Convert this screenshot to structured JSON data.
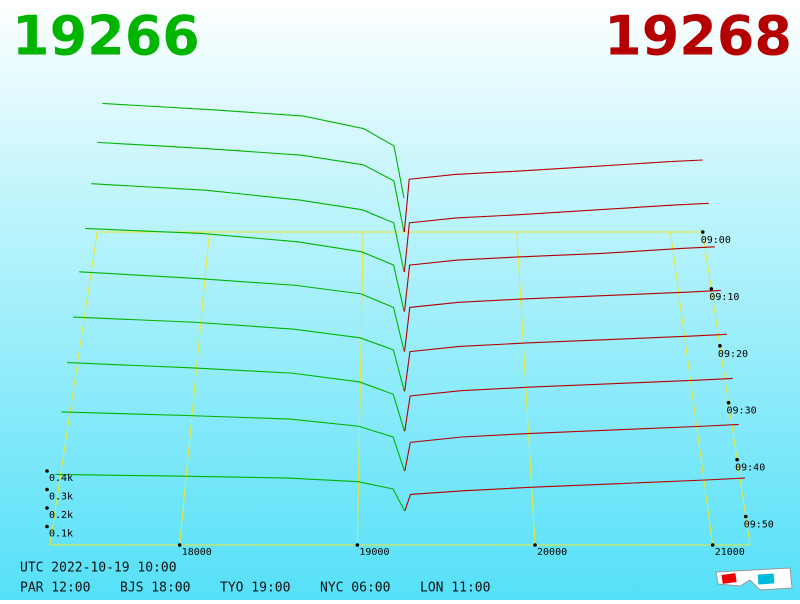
{
  "chart_data": {
    "type": "depth3d",
    "best_bid": 19266,
    "best_ask": 19268,
    "bid_color": "#00b400",
    "ask_color": "#b40000",
    "grid_color": "#e8e830",
    "xlim": [
      17270,
      21210
    ],
    "xticks": [
      18000,
      19000,
      20000,
      21000
    ],
    "depth_ticks": [
      {
        "value": 100,
        "label": "0.1k"
      },
      {
        "value": 200,
        "label": "0.2k"
      },
      {
        "value": 300,
        "label": "0.3k"
      },
      {
        "value": 400,
        "label": "0.4k"
      }
    ],
    "tlim": [
      540,
      595
    ],
    "time_ticks": [
      {
        "value": 540,
        "label": "09:00"
      },
      {
        "value": 550,
        "label": "09:10"
      },
      {
        "value": 560,
        "label": "09:20"
      },
      {
        "value": 570,
        "label": "09:30"
      },
      {
        "value": 580,
        "label": "09:40"
      },
      {
        "value": 590,
        "label": "09:50"
      }
    ],
    "bids": {
      "prices": [
        17270,
        18000,
        18600,
        19000,
        19200,
        19266
      ],
      "snapshots": [
        {
          "time": 534,
          "values": [
            600,
            560,
            520,
            440,
            330,
            0
          ]
        },
        {
          "time": 540,
          "values": [
            560,
            520,
            480,
            420,
            320,
            0
          ]
        },
        {
          "time": 547,
          "values": [
            540,
            500,
            440,
            380,
            300,
            0
          ]
        },
        {
          "time": 554,
          "values": [
            500,
            470,
            420,
            360,
            280,
            0
          ]
        },
        {
          "time": 561,
          "values": [
            470,
            430,
            390,
            340,
            260,
            0
          ]
        },
        {
          "time": 568,
          "values": [
            430,
            400,
            360,
            310,
            240,
            0
          ]
        },
        {
          "time": 575,
          "values": [
            390,
            360,
            330,
            280,
            210,
            0
          ]
        },
        {
          "time": 582,
          "values": [
            330,
            310,
            290,
            250,
            190,
            0
          ]
        },
        {
          "time": 589,
          "values": [
            200,
            190,
            180,
            160,
            120,
            0
          ]
        }
      ]
    },
    "asks": {
      "prices": [
        19268,
        19300,
        19600,
        20000,
        20500,
        21000,
        21210
      ],
      "snapshots": [
        {
          "time": 540,
          "values": [
            0,
            330,
            360,
            380,
            410,
            440,
            450
          ]
        },
        {
          "time": 547,
          "values": [
            0,
            300,
            330,
            350,
            380,
            410,
            420
          ]
        },
        {
          "time": 554,
          "values": [
            0,
            280,
            310,
            330,
            350,
            380,
            390
          ]
        },
        {
          "time": 561,
          "values": [
            0,
            260,
            290,
            310,
            330,
            350,
            360
          ]
        },
        {
          "time": 568,
          "values": [
            0,
            230,
            260,
            280,
            300,
            320,
            330
          ]
        },
        {
          "time": 575,
          "values": [
            0,
            200,
            230,
            250,
            270,
            290,
            300
          ]
        },
        {
          "time": 582,
          "values": [
            0,
            160,
            190,
            210,
            230,
            250,
            260
          ]
        },
        {
          "time": 589,
          "values": [
            0,
            90,
            110,
            130,
            150,
            170,
            180
          ]
        }
      ]
    },
    "utc_line": "UTC 2022-10-19 10:00",
    "cities": [
      "PAR 12:00",
      "BJS 18:00",
      "TYO 19:00",
      "NYC 06:00",
      "LON 11:00"
    ]
  }
}
